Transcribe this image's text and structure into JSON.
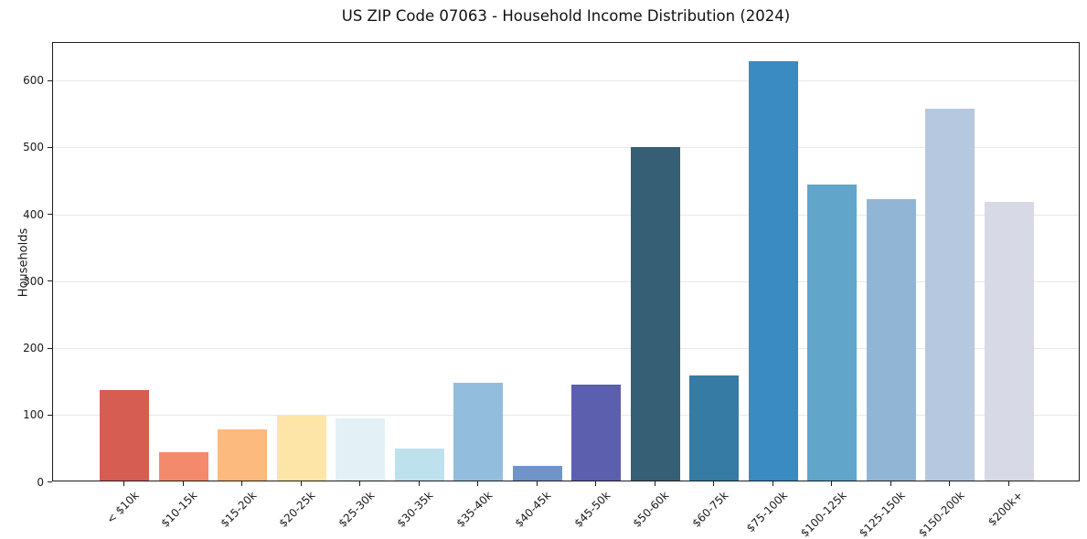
{
  "figure": {
    "background": "#ffffff",
    "grid_color": "#e8e8eb",
    "spine_color": "#1c1c1c",
    "text_color": "#1a1a1a"
  },
  "chart_data": {
    "type": "bar",
    "title": "US ZIP Code 07063 - Household Income Distribution (2024)",
    "xlabel": "",
    "ylabel": "Households",
    "categories": [
      "< $10k",
      "$10-15k",
      "$15-20k",
      "$20-25k",
      "$25-30k",
      "$30-35k",
      "$35-40k",
      "$40-45k",
      "$45-50k",
      "$50-60k",
      "$60-75k",
      "$75-100k",
      "$100-125k",
      "$125-150k",
      "$150-200k",
      "$200k+"
    ],
    "values": [
      135,
      43,
      77,
      97,
      93,
      48,
      146,
      22,
      143,
      498,
      157,
      627,
      443,
      421,
      556,
      417
    ],
    "bar_colors": [
      "#d65d52",
      "#f48a6c",
      "#fcba7e",
      "#fde5a7",
      "#e3f0f6",
      "#bee1ee",
      "#93bddc",
      "#6f94c8",
      "#5b5fae",
      "#365e74",
      "#357ba3",
      "#398bc2",
      "#61a5cb",
      "#91b5d5",
      "#b5c8e0",
      "#d8d9e7"
    ],
    "yticks": [
      0,
      100,
      200,
      300,
      400,
      500,
      600
    ],
    "ylim": [
      0,
      657
    ],
    "xtick_rotation": 45,
    "grid": "horizontal",
    "legend": "none"
  }
}
